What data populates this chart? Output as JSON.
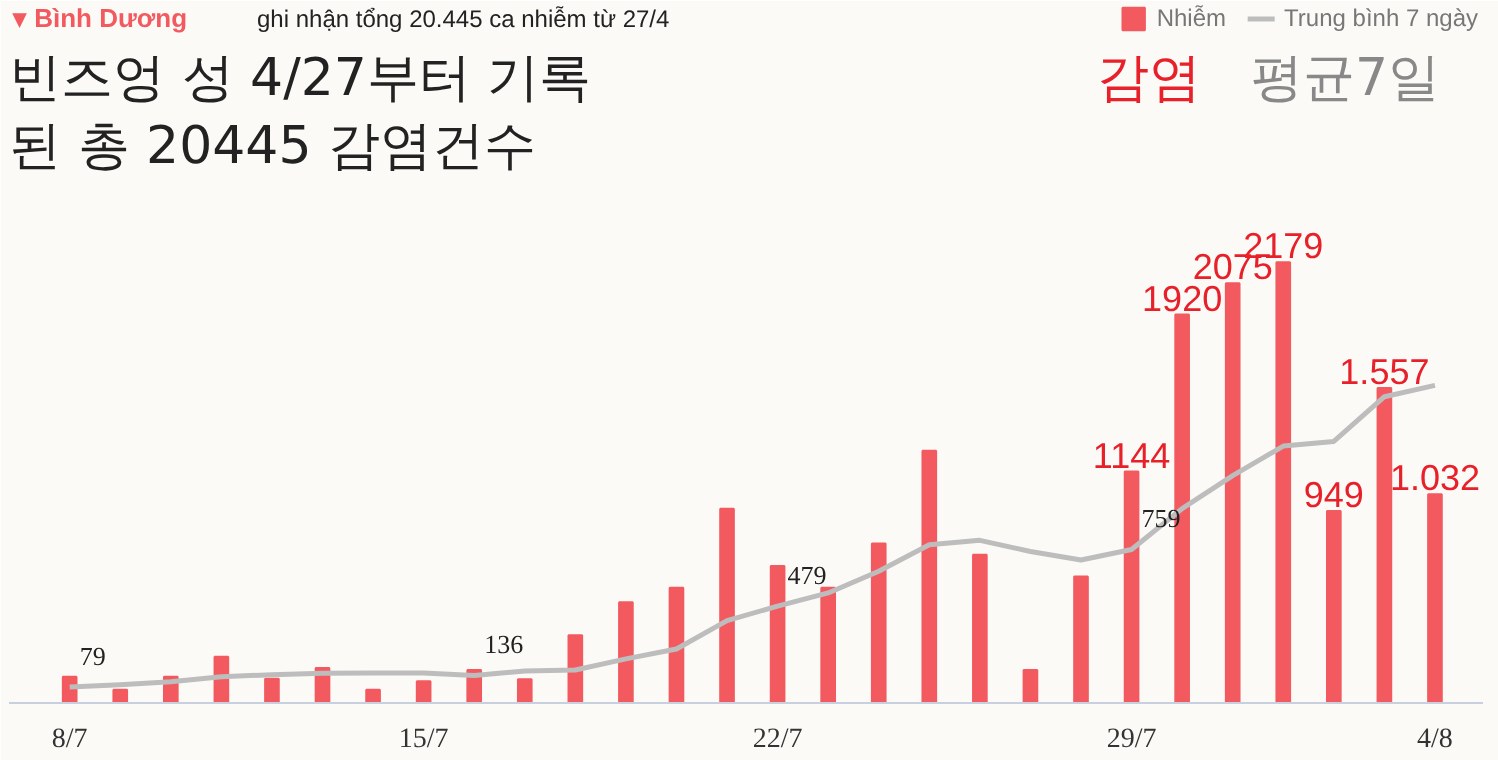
{
  "chart_data": {
    "type": "bar",
    "title": "▾ Bình Dương",
    "subtitle": "ghi nhận tổng 20.445 ca nhiễm từ 27/4",
    "annotations": [
      "빈즈엉 성 4/27부터 기록",
      "된 총 20445 감염건수",
      "감염",
      "평균7일"
    ],
    "categories": [
      "8/7",
      null,
      null,
      null,
      null,
      null,
      null,
      "15/7",
      null,
      null,
      null,
      null,
      null,
      null,
      "22/7",
      null,
      null,
      null,
      null,
      null,
      null,
      "29/7",
      null,
      null,
      null,
      null,
      null,
      "4/8"
    ],
    "ylim": [
      0,
      3470
    ],
    "legend": "top right",
    "grid": false,
    "tick_labels": "x",
    "series": [
      {
        "name": "Nhiễm",
        "color": "#f25a5f",
        "values": [
          130,
          65,
          130,
          228,
          120,
          173,
          65,
          107,
          163,
          117,
          335,
          498,
          570,
          960,
          677,
          570,
          788,
          1247,
          733,
          163,
          625,
          1144,
          1920,
          2075,
          2179,
          949,
          1557,
          1032
        ],
        "value_labels": [
          null,
          null,
          null,
          null,
          null,
          null,
          null,
          null,
          null,
          null,
          null,
          null,
          null,
          null,
          null,
          null,
          null,
          null,
          null,
          null,
          null,
          "1144",
          "1920",
          "2075",
          "2179",
          "949",
          "1.557",
          "1.032"
        ]
      },
      {
        "name": "Trung bình 7 ngày",
        "type": "line",
        "color": "#bdbdbd",
        "values": [
          79,
          90,
          105,
          130,
          140,
          147,
          148,
          148,
          136,
          158,
          163,
          218,
          267,
          407,
          479,
          544,
          651,
          782,
          804,
          749,
          707,
          759,
          961,
          1124,
          1270,
          1293,
          1514,
          1570
        ],
        "value_labels": [
          "79",
          null,
          null,
          null,
          null,
          null,
          null,
          null,
          "136",
          null,
          null,
          null,
          null,
          null,
          "479",
          null,
          null,
          null,
          null,
          null,
          null,
          "759",
          null,
          null,
          null,
          null,
          null,
          null
        ]
      }
    ]
  }
}
